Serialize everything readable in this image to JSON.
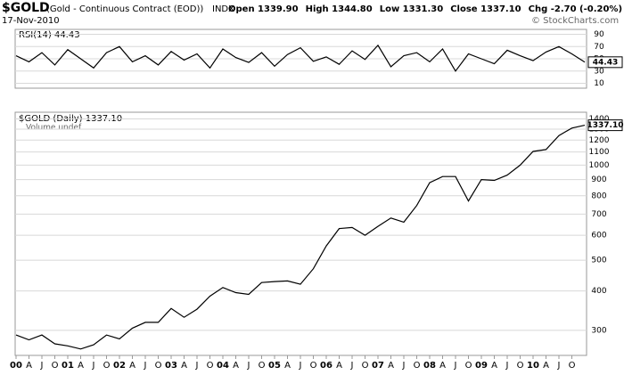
{
  "header": {
    "symbol": "$GOLD",
    "name": "(Gold - Continuous Contract (EOD))",
    "exchange": "INDX",
    "date": "17-Nov-2010",
    "quote": [
      "Open 1339.90",
      "High 1344.80",
      "Low 1331.30",
      "Close 1337.10",
      "Chg -2.70 (-0.20%)"
    ],
    "credit": "© StockCharts.com"
  },
  "chart_data": [
    {
      "type": "line",
      "series": [
        {
          "name": "RSI(14) 44.43",
          "color": "#000000",
          "values": [
            55,
            45,
            60,
            40,
            65,
            50,
            35,
            60,
            70,
            45,
            55,
            40,
            62,
            48,
            58,
            35,
            66,
            52,
            44,
            60,
            38,
            57,
            68,
            46,
            53,
            41,
            63,
            49,
            72,
            37,
            55,
            60,
            45,
            66,
            30,
            58,
            50,
            42,
            64,
            55,
            47,
            61,
            70,
            58,
            44.43
          ]
        }
      ],
      "last_label": "44.43",
      "ylim": [
        2,
        98
      ],
      "yticks": [
        10,
        30,
        50,
        70,
        90
      ],
      "grid": true
    },
    {
      "type": "line",
      "log_scale": true,
      "categories": [
        "00",
        "A",
        "J",
        "O",
        "01",
        "A",
        "J",
        "O",
        "02",
        "A",
        "J",
        "O",
        "03",
        "A",
        "J",
        "O",
        "04",
        "A",
        "J",
        "O",
        "05",
        "A",
        "J",
        "O",
        "06",
        "A",
        "J",
        "O",
        "07",
        "A",
        "J",
        "O",
        "08",
        "A",
        "J",
        "O",
        "09",
        "A",
        "J",
        "O",
        "10",
        "A",
        "J",
        "O",
        null
      ],
      "series": [
        {
          "name": "$GOLD (Daily) 1337.10",
          "color": "#000000",
          "values": [
            290,
            280,
            290,
            272,
            268,
            262,
            270,
            290,
            282,
            305,
            318,
            318,
            352,
            330,
            350,
            385,
            410,
            395,
            390,
            425,
            428,
            430,
            420,
            470,
            555,
            630,
            635,
            600,
            640,
            680,
            660,
            745,
            880,
            920,
            920,
            770,
            900,
            895,
            930,
            1000,
            1105,
            1120,
            1240,
            1310,
            1337.1
          ]
        }
      ],
      "volume_label": "Volume undef",
      "last_label": "1337.10",
      "ylim": [
        250,
        1470
      ],
      "yticks": [
        300,
        400,
        500,
        600,
        700,
        800,
        900,
        1000,
        1100,
        1200,
        1300,
        1400
      ],
      "grid": true
    }
  ]
}
